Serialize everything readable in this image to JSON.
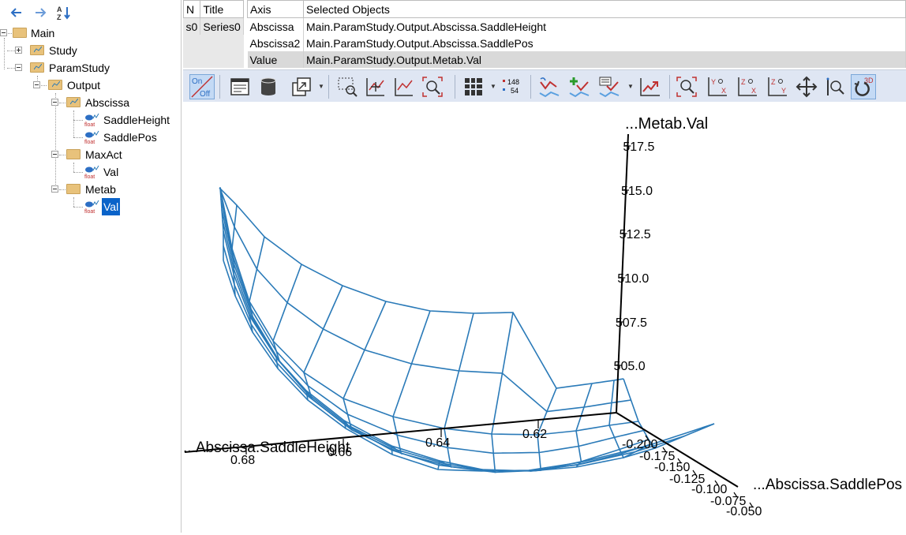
{
  "tree": {
    "nodes": [
      {
        "label": "Main"
      },
      {
        "label": "Study"
      },
      {
        "label": "ParamStudy"
      },
      {
        "label": "Output"
      },
      {
        "label": "Abscissa"
      },
      {
        "label": "SaddleHeight"
      },
      {
        "label": "SaddlePos"
      },
      {
        "label": "MaxAct"
      },
      {
        "label": "Val"
      },
      {
        "label": "Metab"
      },
      {
        "label": "Val"
      }
    ],
    "float_tag": "float",
    "selected": "Val"
  },
  "series_table": {
    "headers": [
      "N",
      "Title"
    ],
    "rows": [
      [
        "s0",
        "Series0"
      ]
    ]
  },
  "axis_table": {
    "headers": [
      "Axis",
      "Selected Objects"
    ],
    "rows": [
      [
        "Abscissa",
        "Main.ParamStudy.Output.Abscissa.SaddleHeight"
      ],
      [
        "Abscissa2",
        "Main.ParamStudy.Output.Abscissa.SaddlePos"
      ],
      [
        "Value",
        "Main.ParamStudy.Output.Metab.Val"
      ]
    ]
  },
  "toolbar": {
    "onoff_on": "On",
    "onoff_off": "Off",
    "counter_top": "148",
    "counter_bottom": "54",
    "zoom_labels": [
      "Y",
      "X",
      "Z",
      "X",
      "Z",
      "Y"
    ],
    "view3d": "3D"
  },
  "colors": {
    "mesh": "#2a7ab8",
    "selection": "#0a63c9",
    "toolbar_bg": "#dfe6f3"
  },
  "chart_data": {
    "type": "surface",
    "z_axis_label": "...Metab.Val",
    "x_axis_label": "...Abscissa.SaddleHeight",
    "y_axis_label": "...Abscissa.SaddlePos",
    "z_ticks": [
      "517.5",
      "515.0",
      "512.5",
      "510.0",
      "507.5",
      "505.0"
    ],
    "x_ticks": [
      "0.68",
      "0.66",
      "0.64",
      "0.62"
    ],
    "y_ticks": [
      "-0.200",
      "-0.175",
      "-0.150",
      "-0.125",
      "-0.100",
      "-0.075",
      "-0.050"
    ],
    "x_range": [
      0.61,
      0.68
    ],
    "y_range": [
      -0.2,
      -0.05
    ],
    "z_range": [
      503,
      518
    ]
  }
}
